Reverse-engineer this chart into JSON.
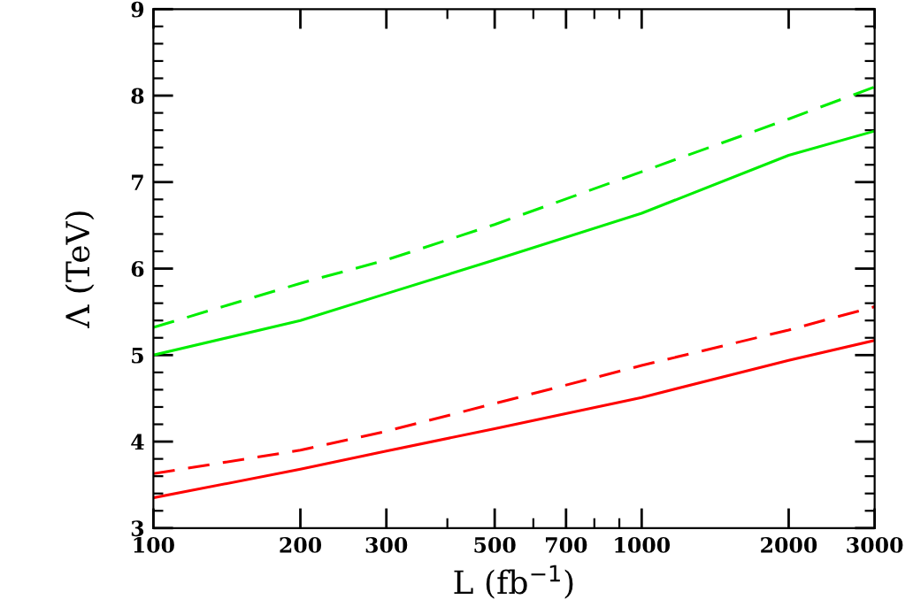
{
  "chart_data": {
    "type": "line",
    "xlabel": "L (fb$^{−1}$)",
    "ylabel": "Λ (TeV)",
    "log": "x",
    "grid": false,
    "legend": false,
    "marker": "none",
    "x": [
      100,
      200,
      300,
      500,
      1000,
      2000,
      3000
    ],
    "series": [
      {
        "color": "#00ee00",
        "line_style": "dashed",
        "values": [
          5.32,
          5.83,
          6.1,
          6.51,
          7.12,
          7.73,
          8.1
        ]
      },
      {
        "color": "#00ee00",
        "line_style": "solid",
        "values": [
          5.0,
          5.4,
          5.71,
          6.1,
          6.64,
          7.31,
          7.59
        ]
      },
      {
        "color": "#ff0000",
        "line_style": "dashed",
        "values": [
          3.63,
          3.9,
          4.12,
          4.44,
          4.88,
          5.29,
          5.56
        ]
      },
      {
        "color": "#ff0000",
        "line_style": "solid",
        "values": [
          3.35,
          3.68,
          3.89,
          4.15,
          4.51,
          4.94,
          5.17
        ]
      }
    ],
    "xlim": [
      100,
      3000
    ],
    "ylim": [
      3,
      9
    ],
    "xticks": [
      100,
      200,
      300,
      500,
      700,
      1000,
      2000,
      3000
    ],
    "yticks": [
      3,
      4,
      5,
      6,
      7,
      8,
      9
    ]
  }
}
